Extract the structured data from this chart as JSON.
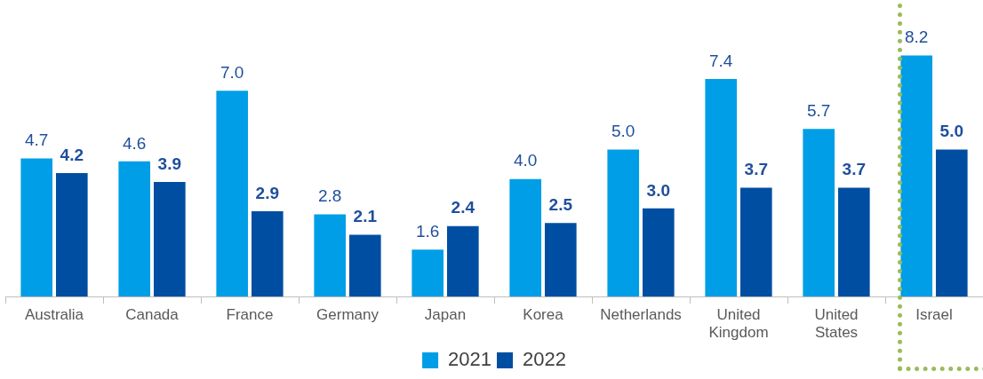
{
  "chart_data": {
    "type": "bar",
    "categories": [
      "Australia",
      "Canada",
      "France",
      "Germany",
      "Japan",
      "Korea",
      "Netherlands",
      "United Kingdom",
      "United States",
      "Israel"
    ],
    "series": [
      {
        "name": "2021",
        "color": "#009ee6",
        "values": [
          4.7,
          4.6,
          7.0,
          2.8,
          1.6,
          4.0,
          5.0,
          7.4,
          5.7,
          8.2
        ],
        "value_labels": [
          "4.7",
          "4.6",
          "7.0",
          "2.8",
          "1.6",
          "4.0",
          "5.0",
          "7.4",
          "5.7",
          "8.2"
        ]
      },
      {
        "name": "2022",
        "color": "#004ea2",
        "values": [
          4.2,
          3.9,
          2.9,
          2.1,
          2.4,
          2.5,
          3.0,
          3.7,
          3.7,
          5.0
        ],
        "value_labels": [
          "4.2",
          "3.9",
          "2.9",
          "2.1",
          "2.4",
          "2.5",
          "3.0",
          "3.7",
          "3.7",
          "5.0"
        ]
      }
    ],
    "legend": "bottom",
    "grid": false
  }
}
